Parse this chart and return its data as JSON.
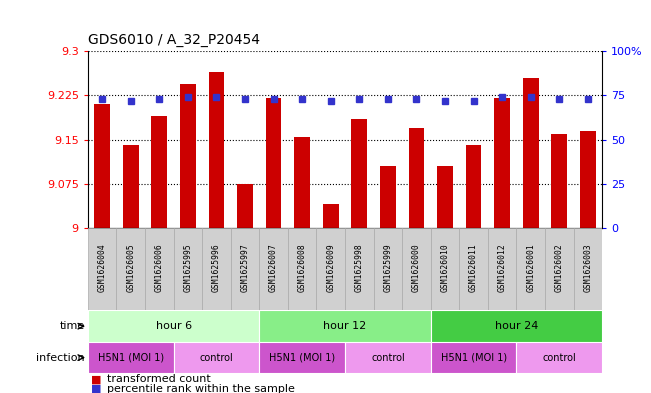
{
  "title": "GDS6010 / A_32_P20454",
  "samples": [
    "GSM1626004",
    "GSM1626005",
    "GSM1626006",
    "GSM1625995",
    "GSM1625996",
    "GSM1625997",
    "GSM1626007",
    "GSM1626008",
    "GSM1626009",
    "GSM1625998",
    "GSM1625999",
    "GSM1626000",
    "GSM1626010",
    "GSM1626011",
    "GSM1626012",
    "GSM1626001",
    "GSM1626002",
    "GSM1626003"
  ],
  "bar_values": [
    9.21,
    9.14,
    9.19,
    9.245,
    9.265,
    9.075,
    9.22,
    9.155,
    9.04,
    9.185,
    9.105,
    9.17,
    9.105,
    9.14,
    9.22,
    9.255,
    9.16,
    9.165
  ],
  "percentile_values": [
    73,
    72,
    73,
    74,
    74,
    73,
    73,
    73,
    72,
    73,
    73,
    73,
    72,
    72,
    74,
    74,
    73,
    73
  ],
  "ymin": 9.0,
  "ymax": 9.3,
  "y2min": 0,
  "y2max": 100,
  "yticks": [
    9.0,
    9.075,
    9.15,
    9.225,
    9.3
  ],
  "y2ticks": [
    0,
    25,
    50,
    75,
    100
  ],
  "ytick_labels": [
    "9",
    "9.075",
    "9.15",
    "9.225",
    "9.3"
  ],
  "y2tick_labels": [
    "0",
    "25",
    "50",
    "75",
    "100%"
  ],
  "bar_color": "#cc0000",
  "dot_color": "#3333cc",
  "time_groups": [
    {
      "label": "hour 6",
      "start": 0,
      "end": 6,
      "color": "#ccffcc"
    },
    {
      "label": "hour 12",
      "start": 6,
      "end": 12,
      "color": "#88ee88"
    },
    {
      "label": "hour 24",
      "start": 12,
      "end": 18,
      "color": "#44cc44"
    }
  ],
  "inf_groups": [
    {
      "label": "H5N1 (MOI 1)",
      "start": 0,
      "end": 3,
      "color": "#cc55cc"
    },
    {
      "label": "control",
      "start": 3,
      "end": 6,
      "color": "#ee99ee"
    },
    {
      "label": "H5N1 (MOI 1)",
      "start": 6,
      "end": 9,
      "color": "#cc55cc"
    },
    {
      "label": "control",
      "start": 9,
      "end": 12,
      "color": "#ee99ee"
    },
    {
      "label": "H5N1 (MOI 1)",
      "start": 12,
      "end": 15,
      "color": "#cc55cc"
    },
    {
      "label": "control",
      "start": 15,
      "end": 18,
      "color": "#ee99ee"
    }
  ],
  "sample_box_color": "#d0d0d0",
  "legend_transformed": "transformed count",
  "legend_percentile": "percentile rank within the sample",
  "time_label": "time",
  "infection_label": "infection"
}
